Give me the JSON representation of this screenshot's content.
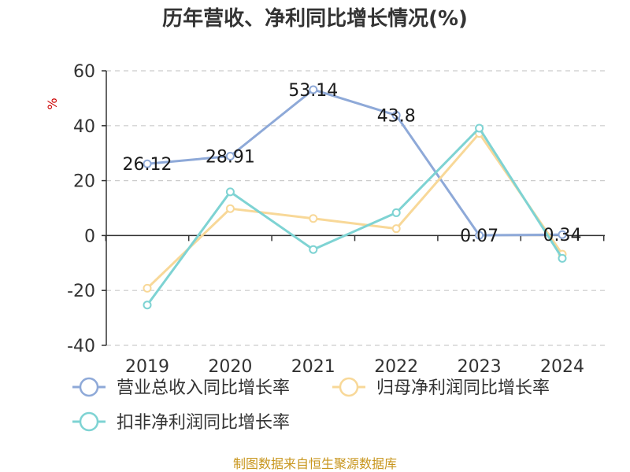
{
  "chart_data": {
    "type": "line",
    "title": "历年营收、净利同比增长情况(%)",
    "ylabel": "%",
    "categories": [
      "2019",
      "2020",
      "2021",
      "2022",
      "2023",
      "2024"
    ],
    "ylim": [
      -40,
      60
    ],
    "yticks": [
      60,
      40,
      20,
      0,
      -20,
      -40
    ],
    "grid": true,
    "legend_position": "bottom",
    "series": [
      {
        "name": "营业总收入同比增长率",
        "color": "#8ea9d8",
        "values": [
          26.12,
          28.91,
          53.14,
          43.8,
          0.07,
          0.34
        ],
        "data_labels": [
          "26.12",
          "28.91",
          "53.14",
          "43.8",
          "0.07",
          "0.34"
        ]
      },
      {
        "name": "归母净利润同比增长率",
        "color": "#f8d898",
        "values": [
          -19.2,
          9.8,
          6.2,
          2.5,
          37.2,
          -6.8
        ]
      },
      {
        "name": "扣非净利润同比增长率",
        "color": "#7ed3d3",
        "values": [
          -25.3,
          15.9,
          -5.1,
          8.3,
          39.1,
          -8.3
        ]
      }
    ]
  },
  "source": "制图数据来自恒生聚源数据库",
  "colors": {
    "title": "#333333",
    "axis": "#333333",
    "grid": "#cccccc",
    "ylabel": "#cc0000",
    "source": "#c8961e"
  }
}
